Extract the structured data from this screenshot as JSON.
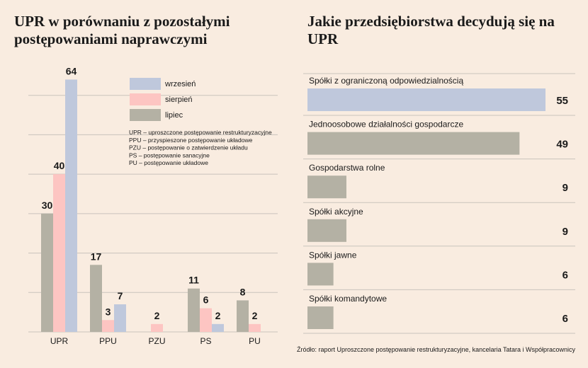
{
  "left_chart": {
    "title": "UPR w porównaniu z pozostałymi postępowaniami naprawczymi",
    "chart_data": {
      "type": "bar",
      "categories": [
        "UPR",
        "PPU",
        "PZU",
        "PS",
        "PU"
      ],
      "series": [
        {
          "name": "lipiec",
          "color": "#b4b1a4",
          "values": [
            30,
            17,
            null,
            11,
            8
          ]
        },
        {
          "name": "sierpień",
          "color": "#fdc5c2",
          "values": [
            40,
            3,
            2,
            6,
            2
          ]
        },
        {
          "name": "wrzesień",
          "color": "#bfc8dc",
          "values": [
            64,
            7,
            null,
            2,
            null
          ]
        }
      ],
      "legend_order": [
        "wrzesień",
        "sierpień",
        "lipiec"
      ],
      "ylim": [
        0,
        70
      ],
      "grid": true,
      "legend_position": "top-right",
      "abbreviations": [
        "UPR – uproszczone postępowanie restrukturyzacyjne",
        "PPU – przyspieszone postępowanie układowe",
        "PZU – postępowanie o zatwierdzenie układu",
        "PS – postępowanie sanacyjne",
        "PU – postępowanie układowe"
      ]
    }
  },
  "right_chart": {
    "title": "Jakie przedsiębiorstwa decydują się na UPR",
    "chart_data": {
      "type": "bar",
      "orientation": "horizontal",
      "categories": [
        "Spółki z ograniczoną odpowiedzialnością",
        "Jednoosobowe działalności gospodarcze",
        "Gospodarstwa rolne",
        "Spółki akcyjne",
        "Spółki jawne",
        "Spółki komandytowe"
      ],
      "values": [
        55,
        49,
        9,
        9,
        6,
        6
      ],
      "colors": [
        "#bfc8dc",
        "#b4b1a4",
        "#b4b1a4",
        "#b4b1a4",
        "#b4b1a4",
        "#b4b1a4"
      ],
      "xlim": [
        0,
        55
      ]
    }
  },
  "source": "Źródło: raport Uproszczone postępowanie restrukturyzacyjne, kancelaria Tatara i Współpracownicy",
  "colors": {
    "background": "#f9ece0",
    "grid": "#c9c3bc",
    "text": "#1a1a1a"
  }
}
